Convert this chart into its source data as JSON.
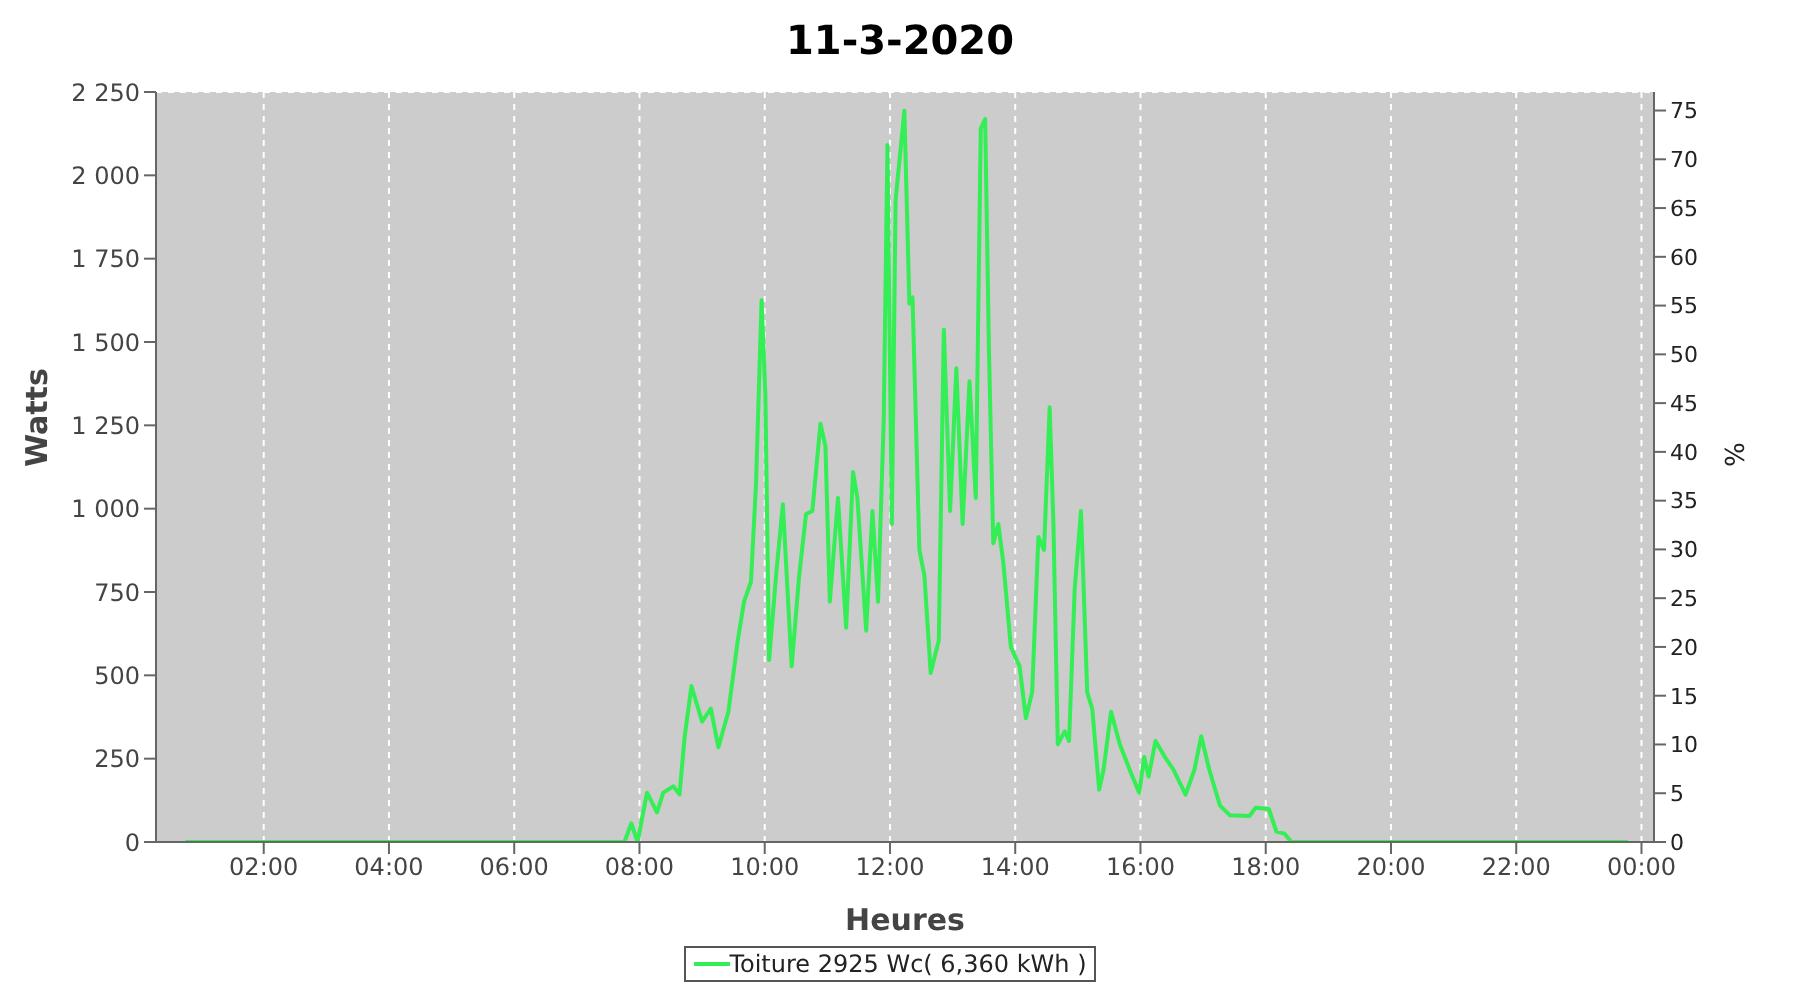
{
  "chart_data": {
    "type": "line",
    "title": "11-3-2020",
    "xlabel": "Heures",
    "ylabel": "Watts",
    "y2label": "%",
    "xlim": [
      0.28,
      24.2
    ],
    "xticks": [
      {
        "value": 2,
        "label": "02:00"
      },
      {
        "value": 4,
        "label": "04:00"
      },
      {
        "value": 6,
        "label": "06:00"
      },
      {
        "value": 8,
        "label": "08:00"
      },
      {
        "value": 10,
        "label": "10:00"
      },
      {
        "value": 12,
        "label": "12:00"
      },
      {
        "value": 14,
        "label": "14:00"
      },
      {
        "value": 16,
        "label": "16:00"
      },
      {
        "value": 18,
        "label": "18:00"
      },
      {
        "value": 20,
        "label": "20:00"
      },
      {
        "value": 22,
        "label": "22:00"
      },
      {
        "value": 24,
        "label": "00:00"
      }
    ],
    "ylim": [
      0,
      2250
    ],
    "yticks": [
      0,
      250,
      500,
      750,
      {
        "value": 1000,
        "label": "1 000"
      },
      {
        "value": 1250,
        "label": "1 250"
      },
      {
        "value": 1500,
        "label": "1 500"
      },
      {
        "value": 1750,
        "label": "1 750"
      },
      {
        "value": 2000,
        "label": "2 000"
      },
      {
        "value": 2250,
        "label": "2 250"
      }
    ],
    "y2lim": [
      0,
      76.9
    ],
    "y2ticks": [
      0,
      5,
      10,
      15,
      20,
      25,
      30,
      35,
      40,
      45,
      50,
      55,
      60,
      65,
      70,
      75
    ],
    "grid": true,
    "legend": "bottom",
    "x": [
      0.75,
      7.76,
      7.87,
      7.97,
      8.12,
      8.28,
      8.38,
      8.54,
      8.64,
      8.72,
      8.83,
      9.0,
      9.14,
      9.26,
      9.42,
      9.57,
      9.67,
      9.78,
      9.86,
      9.95,
      10.01,
      10.07,
      10.19,
      10.29,
      10.43,
      10.55,
      10.66,
      10.76,
      10.89,
      10.97,
      11.04,
      11.17,
      11.3,
      11.41,
      11.48,
      11.62,
      11.72,
      11.81,
      11.9,
      11.96,
      12.03,
      12.09,
      12.23,
      12.31,
      12.36,
      12.47,
      12.55,
      12.65,
      12.78,
      12.86,
      12.96,
      13.06,
      13.16,
      13.27,
      13.37,
      13.45,
      13.52,
      13.58,
      13.65,
      13.73,
      13.81,
      13.93,
      14.07,
      14.17,
      14.27,
      14.37,
      14.46,
      14.55,
      14.61,
      14.68,
      14.79,
      14.86,
      14.95,
      15.05,
      15.15,
      15.23,
      15.34,
      15.41,
      15.53,
      15.67,
      15.85,
      15.98,
      16.06,
      16.13,
      16.24,
      16.39,
      16.53,
      16.72,
      16.86,
      16.97,
      17.1,
      17.27,
      17.43,
      17.74,
      17.84,
      18.05,
      18.17,
      18.3,
      18.41,
      23.78
    ],
    "series": [
      {
        "name": "Toiture 2925 Wc( 6,360 kWh )",
        "color": "#33ee55",
        "values": [
          0,
          0,
          56,
          0,
          148,
          89,
          148,
          167,
          143,
          313,
          468,
          361,
          400,
          284,
          391,
          605,
          721,
          780,
          1071,
          1625,
          1343,
          546,
          818,
          1013,
          527,
          799,
          984,
          993,
          1255,
          1187,
          721,
          1032,
          643,
          1110,
          1032,
          634,
          993,
          721,
          1265,
          2091,
          954,
          1926,
          2194,
          1615,
          1634,
          876,
          799,
          507,
          605,
          1537,
          993,
          1421,
          954,
          1382,
          1032,
          2140,
          2169,
          1479,
          896,
          954,
          838,
          585,
          527,
          371,
          449,
          915,
          876,
          1304,
          954,
          293,
          332,
          303,
          760,
          993,
          449,
          400,
          157,
          216,
          391,
          293,
          206,
          148,
          255,
          196,
          303,
          255,
          216,
          142,
          216,
          317,
          216,
          109,
          80,
          78,
          103,
          99,
          31,
          25,
          0,
          0
        ]
      }
    ]
  }
}
